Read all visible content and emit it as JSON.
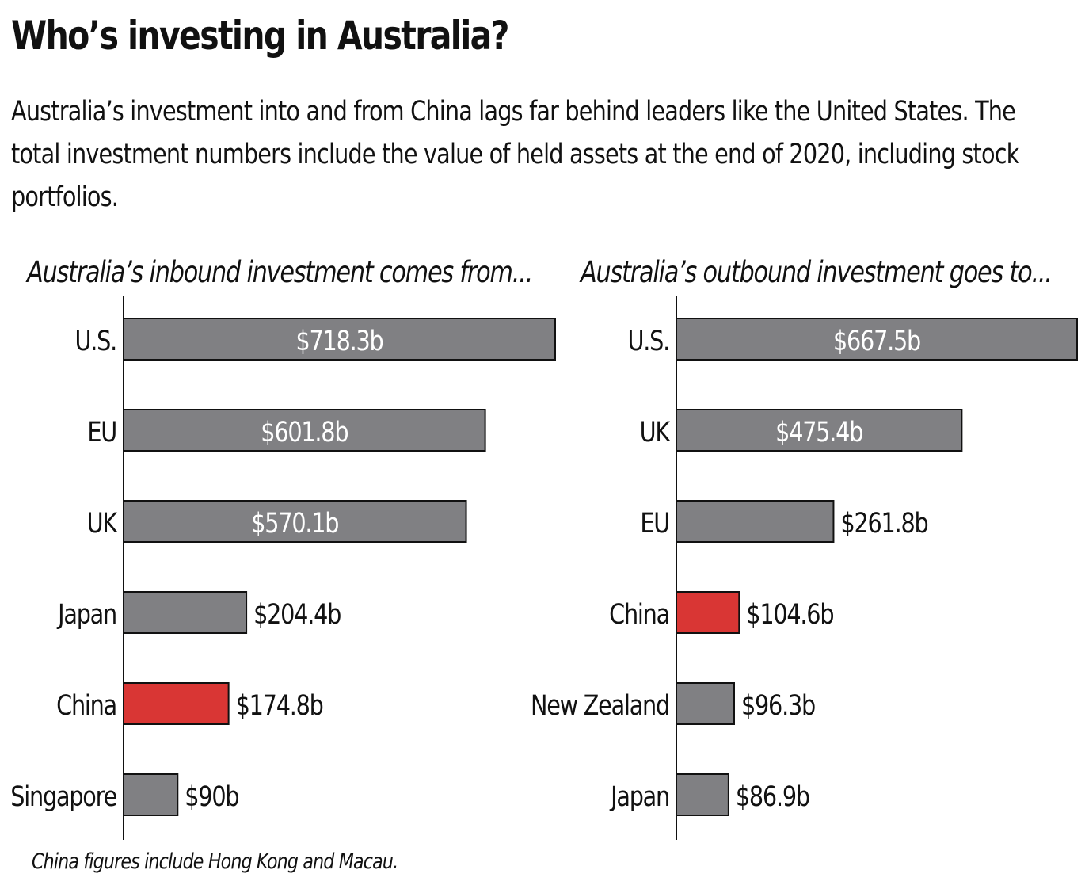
{
  "title": "Who’s investing in Australia?",
  "subtitle": "Australia’s investment into and from China lags far behind leaders like the United States. The total investment numbers include the value of held assets at the end of 2020, including stock portfolios.",
  "footnote": "China figures include Hong Kong and Macau.",
  "colors": {
    "bar": "#808083",
    "highlight": "#d93634",
    "text": "#111111"
  },
  "chart_data": [
    {
      "type": "bar",
      "orientation": "horizontal",
      "title": "Australia’s inbound investment comes from...",
      "categories": [
        "U.S.",
        "EU",
        "UK",
        "Japan",
        "China",
        "Singapore"
      ],
      "values": [
        718.3,
        601.8,
        570.1,
        204.4,
        174.8,
        90
      ],
      "labels": [
        "$718.3b",
        "$601.8b",
        "$570.1b",
        "$204.4b",
        "$174.8b",
        "$90b"
      ],
      "highlight": "China",
      "unit": "billion AUD",
      "grid": false
    },
    {
      "type": "bar",
      "orientation": "horizontal",
      "title": "Australia’s outbound investment goes to...",
      "categories": [
        "U.S.",
        "UK",
        "EU",
        "China",
        "New Zealand",
        "Japan"
      ],
      "values": [
        667.5,
        475.4,
        261.8,
        104.6,
        96.3,
        86.9
      ],
      "labels": [
        "$667.5b",
        "$475.4b",
        "$261.8b",
        "$104.6b",
        "$96.3b",
        "$86.9b"
      ],
      "highlight": "China",
      "unit": "billion AUD",
      "grid": false
    }
  ]
}
